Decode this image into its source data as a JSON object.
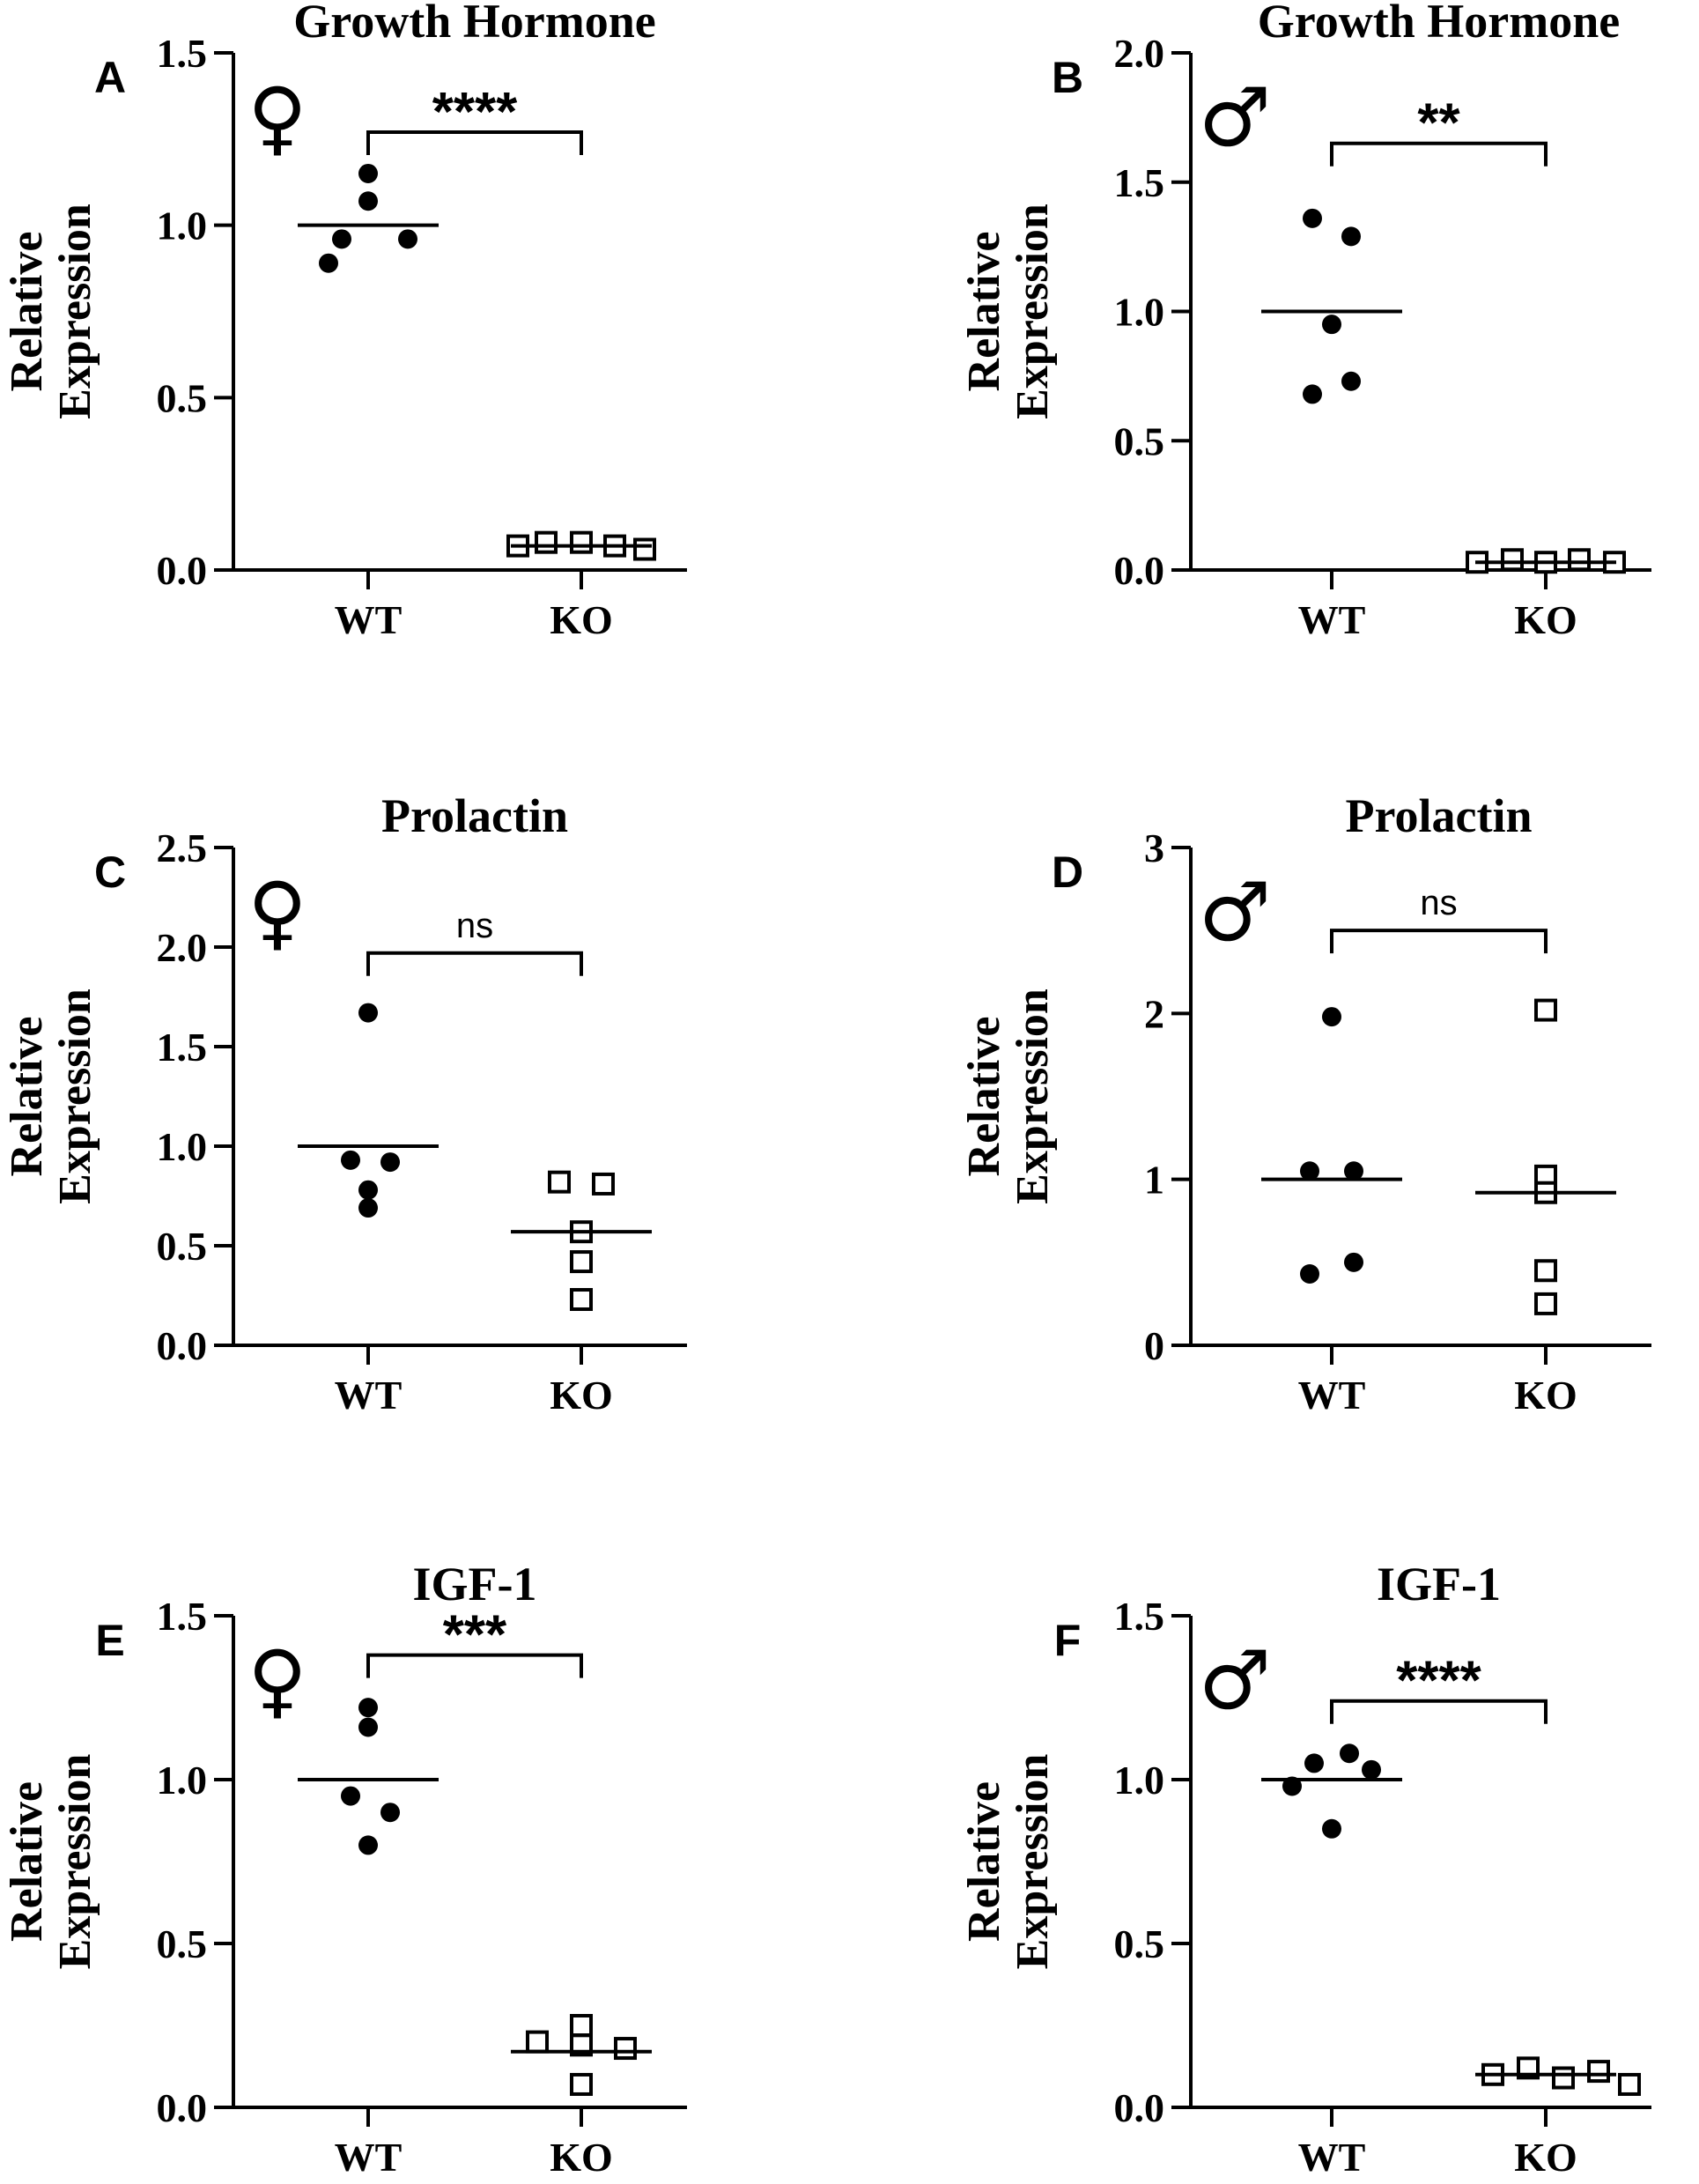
{
  "chart_data": [
    {
      "panel": "A",
      "type": "scatter",
      "title": "Growth Hormone",
      "sex_symbol": "♀",
      "ylabel_line1": "Relative",
      "ylabel_line2": "Expression",
      "categories": [
        "WT",
        "KO"
      ],
      "ylim": [
        0,
        1.5
      ],
      "yticks": [
        0.0,
        0.5,
        1.0,
        1.5
      ],
      "ytick_labels": [
        "0.0",
        "0.5",
        "1.0",
        "1.5"
      ],
      "series": [
        {
          "category": "WT",
          "marker": "filled-circle",
          "values": [
            1.15,
            1.07,
            0.96,
            0.96,
            0.89
          ],
          "mean": 1.0
        },
        {
          "category": "KO",
          "marker": "open-square",
          "values": [
            0.08,
            0.08,
            0.07,
            0.06,
            0.07
          ],
          "mean": 0.07
        }
      ],
      "significance": "****",
      "significance_y": 1.27
    },
    {
      "panel": "B",
      "type": "scatter",
      "title": "Growth Hormone",
      "sex_symbol": "♂",
      "ylabel_line1": "Relative",
      "ylabel_line2": "Expression",
      "categories": [
        "WT",
        "KO"
      ],
      "ylim": [
        0,
        2.0
      ],
      "yticks": [
        0.0,
        0.5,
        1.0,
        1.5,
        2.0
      ],
      "ytick_labels": [
        "0.0",
        "0.5",
        "1.0",
        "1.5",
        "2.0"
      ],
      "series": [
        {
          "category": "WT",
          "marker": "filled-circle",
          "values": [
            1.36,
            1.29,
            0.95,
            0.73,
            0.68
          ],
          "mean": 1.0
        },
        {
          "category": "KO",
          "marker": "open-square",
          "values": [
            0.03,
            0.04,
            0.03,
            0.04,
            0.03
          ],
          "mean": 0.03
        }
      ],
      "significance": "**",
      "significance_y": 1.65
    },
    {
      "panel": "C",
      "type": "scatter",
      "title": "Prolactin",
      "sex_symbol": "♀",
      "ylabel_line1": "Relative",
      "ylabel_line2": "Expression",
      "categories": [
        "WT",
        "KO"
      ],
      "ylim": [
        0,
        2.5
      ],
      "yticks": [
        0.0,
        0.5,
        1.0,
        1.5,
        2.0,
        2.5
      ],
      "ytick_labels": [
        "0.0",
        "0.5",
        "1.0",
        "1.5",
        "2.0",
        "2.5"
      ],
      "series": [
        {
          "category": "WT",
          "marker": "filled-circle",
          "values": [
            1.67,
            0.93,
            0.92,
            0.78,
            0.69
          ],
          "mean": 1.0
        },
        {
          "category": "KO",
          "marker": "open-square",
          "values": [
            0.82,
            0.81,
            0.57,
            0.42,
            0.23
          ],
          "mean": 0.57
        }
      ],
      "significance": "ns",
      "significance_y": 1.97
    },
    {
      "panel": "D",
      "type": "scatter",
      "title": "Prolactin",
      "sex_symbol": "♂",
      "ylabel_line1": "Relative",
      "ylabel_line2": "Expression",
      "categories": [
        "WT",
        "KO"
      ],
      "ylim": [
        0,
        3
      ],
      "yticks": [
        0,
        1,
        2,
        3
      ],
      "ytick_labels": [
        "0",
        "1",
        "2",
        "3"
      ],
      "series": [
        {
          "category": "WT",
          "marker": "filled-circle",
          "values": [
            1.98,
            1.05,
            1.05,
            0.5,
            0.43
          ],
          "mean": 1.0
        },
        {
          "category": "KO",
          "marker": "open-square",
          "values": [
            2.02,
            1.02,
            0.92,
            0.45,
            0.25
          ],
          "mean": 0.92
        }
      ],
      "significance": "ns",
      "significance_y": 2.5
    },
    {
      "panel": "E",
      "type": "scatter",
      "title": "IGF-1",
      "sex_symbol": "♀",
      "ylabel_line1": "Relative",
      "ylabel_line2": "Expression",
      "categories": [
        "WT",
        "KO"
      ],
      "ylim": [
        0,
        1.5
      ],
      "yticks": [
        0.0,
        0.5,
        1.0,
        1.5
      ],
      "ytick_labels": [
        "0.0",
        "0.5",
        "1.0",
        "1.5"
      ],
      "series": [
        {
          "category": "WT",
          "marker": "filled-circle",
          "values": [
            1.22,
            1.16,
            0.95,
            0.9,
            0.8
          ],
          "mean": 1.0
        },
        {
          "category": "KO",
          "marker": "open-square",
          "values": [
            0.25,
            0.2,
            0.19,
            0.18,
            0.07
          ],
          "mean": 0.17
        }
      ],
      "significance": "***",
      "significance_y": 1.38
    },
    {
      "panel": "F",
      "type": "scatter",
      "title": "IGF-1",
      "sex_symbol": "♂",
      "ylabel_line1": "Relative",
      "ylabel_line2": "Expression",
      "categories": [
        "WT",
        "KO"
      ],
      "ylim": [
        0,
        1.5
      ],
      "yticks": [
        0.0,
        0.5,
        1.0,
        1.5
      ],
      "ytick_labels": [
        "0.0",
        "0.5",
        "1.0",
        "1.5"
      ],
      "series": [
        {
          "category": "WT",
          "marker": "filled-circle",
          "values": [
            1.08,
            1.05,
            1.03,
            0.98,
            0.85
          ],
          "mean": 1.0
        },
        {
          "category": "KO",
          "marker": "open-square",
          "values": [
            0.12,
            0.11,
            0.09,
            0.1,
            0.07
          ],
          "mean": 0.1
        }
      ],
      "significance": "****",
      "significance_y": 1.24
    }
  ]
}
